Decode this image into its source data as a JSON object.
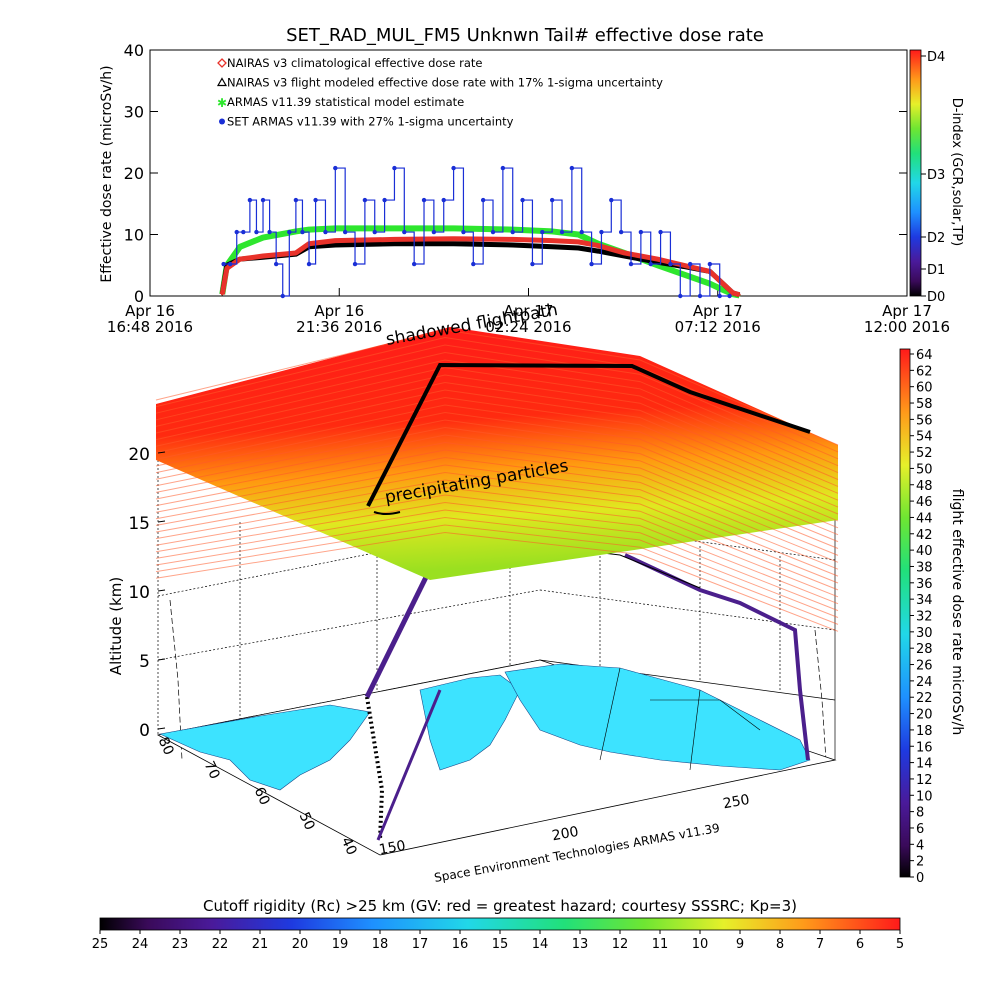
{
  "colors": {
    "climatological": "#e8322a",
    "flight_modeled": "#000000",
    "armas_model": "#2ee62e",
    "set_armas": "#1a2fd6",
    "sheet_red": "#ff1a1a",
    "sheet_green": "#a8e000",
    "land_cyan": "#3de3ff",
    "flight_path": "#4b1f8c"
  },
  "chart_data": [
    {
      "type": "line",
      "title": "SET_RAD_MUL_FM5 Unknwn Tail#  effective dose rate",
      "ylabel": "Effective dose rate (microSv/h)",
      "ylim": [
        0,
        40
      ],
      "yticks": [
        "0",
        "10",
        "20",
        "30",
        "40"
      ],
      "xlim": [
        "2016-04-16T16:48",
        "2016-04-17T12:00"
      ],
      "xticks": [
        {
          "line1": "Apr 16",
          "line2": "16:48 2016"
        },
        {
          "line1": "Apr 16",
          "line2": "21:36 2016"
        },
        {
          "line1": "Apr 17",
          "line2": "02:24 2016"
        },
        {
          "line1": "Apr 17",
          "line2": "07:12 2016"
        },
        {
          "line1": "Apr 17",
          "line2": "12:00 2016"
        }
      ],
      "legend_position": "top-left",
      "series": [
        {
          "name": "NAIRAS v3 climatological effective dose rate",
          "marker": "diamond",
          "x": [
            "2016-04-16T18:38",
            "2016-04-16T18:45",
            "2016-04-16T19:05",
            "2016-04-16T19:40",
            "2016-04-16T20:30",
            "2016-04-16T20:50",
            "2016-04-16T21:30",
            "2016-04-16T23:00",
            "2016-04-17T00:30",
            "2016-04-17T02:00",
            "2016-04-17T03:00",
            "2016-04-17T03:40",
            "2016-04-17T04:10",
            "2016-04-17T04:50",
            "2016-04-17T05:40",
            "2016-04-17T06:20",
            "2016-04-17T07:00",
            "2016-04-17T07:20",
            "2016-04-17T07:35",
            "2016-04-17T07:45"
          ],
          "y": [
            0.3,
            4.5,
            6.0,
            6.5,
            7.0,
            8.5,
            9.0,
            9.2,
            9.3,
            9.2,
            9.0,
            8.8,
            8.2,
            7.0,
            6.0,
            5.0,
            4.0,
            2.0,
            0.5,
            0.2
          ]
        },
        {
          "name": "NAIRAS v3 flight modeled effective dose rate with 17% 1-sigma uncertainty",
          "marker": "triangle",
          "x": [
            "2016-04-16T18:38",
            "2016-04-16T18:45",
            "2016-04-16T19:05",
            "2016-04-16T19:40",
            "2016-04-16T20:30",
            "2016-04-16T20:50",
            "2016-04-16T21:30",
            "2016-04-16T23:00",
            "2016-04-17T00:30",
            "2016-04-17T02:00",
            "2016-04-17T03:00",
            "2016-04-17T03:40",
            "2016-04-17T04:10",
            "2016-04-17T04:50",
            "2016-04-17T05:40",
            "2016-04-17T06:20",
            "2016-04-17T07:00",
            "2016-04-17T07:20",
            "2016-04-17T07:35",
            "2016-04-17T07:45"
          ],
          "y": [
            0.3,
            5.0,
            6.0,
            6.3,
            6.8,
            8.0,
            8.3,
            8.5,
            8.5,
            8.3,
            8.0,
            7.8,
            7.3,
            6.5,
            5.5,
            4.8,
            4.0,
            2.0,
            0.5,
            0.2
          ]
        },
        {
          "name": "ARMAS v11.39 statistical model estimate",
          "marker": "asterisk",
          "x": [
            "2016-04-16T18:38",
            "2016-04-16T18:45",
            "2016-04-16T19:05",
            "2016-04-16T19:40",
            "2016-04-16T20:30",
            "2016-04-16T20:50",
            "2016-04-16T21:30",
            "2016-04-16T23:00",
            "2016-04-17T00:30",
            "2016-04-17T02:00",
            "2016-04-17T03:00",
            "2016-04-17T03:40",
            "2016-04-17T04:10",
            "2016-04-17T04:50",
            "2016-04-17T05:40",
            "2016-04-17T06:20",
            "2016-04-17T07:00",
            "2016-04-17T07:20",
            "2016-04-17T07:35",
            "2016-04-17T07:45"
          ],
          "y": [
            0.3,
            5.0,
            8.0,
            9.5,
            10.5,
            10.8,
            11.0,
            11.0,
            11.0,
            10.8,
            10.5,
            10.0,
            8.5,
            7.0,
            5.0,
            3.5,
            2.0,
            1.0,
            0.3,
            0.1
          ]
        },
        {
          "name": "SET ARMAS v11.39 with 27% 1-sigma uncertainty",
          "marker": "dot",
          "x": [
            "2016-04-16T18:40",
            "2016-04-16T18:50",
            "2016-04-16T19:00",
            "2016-04-16T19:10",
            "2016-04-16T19:20",
            "2016-04-16T19:30",
            "2016-04-16T19:40",
            "2016-04-16T19:50",
            "2016-04-16T20:00",
            "2016-04-16T20:10",
            "2016-04-16T20:20",
            "2016-04-16T20:30",
            "2016-04-16T20:40",
            "2016-04-16T20:50",
            "2016-04-16T21:00",
            "2016-04-16T21:15",
            "2016-04-16T21:30",
            "2016-04-16T21:45",
            "2016-04-16T22:00",
            "2016-04-16T22:15",
            "2016-04-16T22:30",
            "2016-04-16T22:45",
            "2016-04-16T23:00",
            "2016-04-16T23:15",
            "2016-04-16T23:30",
            "2016-04-16T23:45",
            "2016-04-17T00:00",
            "2016-04-17T00:15",
            "2016-04-17T00:30",
            "2016-04-17T00:45",
            "2016-04-17T01:00",
            "2016-04-17T01:15",
            "2016-04-17T01:30",
            "2016-04-17T01:45",
            "2016-04-17T02:00",
            "2016-04-17T02:15",
            "2016-04-17T02:30",
            "2016-04-17T02:45",
            "2016-04-17T03:00",
            "2016-04-17T03:15",
            "2016-04-17T03:30",
            "2016-04-17T03:45",
            "2016-04-17T04:00",
            "2016-04-17T04:15",
            "2016-04-17T04:30",
            "2016-04-17T04:45",
            "2016-04-17T05:00",
            "2016-04-17T05:15",
            "2016-04-17T05:30",
            "2016-04-17T05:45",
            "2016-04-17T06:00",
            "2016-04-17T06:15",
            "2016-04-17T06:30",
            "2016-04-17T06:45",
            "2016-04-17T07:00",
            "2016-04-17T07:15",
            "2016-04-17T07:30"
          ],
          "y": [
            5.2,
            5.2,
            10.4,
            10.4,
            15.6,
            10.4,
            15.6,
            10.4,
            5.2,
            0,
            10.4,
            15.6,
            10.4,
            5.2,
            15.6,
            10.4,
            20.8,
            10.4,
            5.2,
            15.6,
            10.4,
            15.6,
            20.8,
            10.4,
            5.2,
            15.6,
            10.4,
            15.6,
            20.8,
            10.4,
            5.2,
            15.6,
            10.4,
            20.8,
            10.4,
            15.6,
            5.2,
            10.4,
            15.6,
            10.4,
            20.8,
            10.4,
            5.2,
            10.4,
            15.6,
            10.4,
            5.2,
            10.4,
            5.2,
            10.4,
            5.2,
            0,
            5.2,
            0,
            5.2,
            0,
            0
          ]
        }
      ],
      "dindex_colorbar": {
        "ylabel": "D-index (GCR,solar,TP)",
        "ticks": [
          "D0",
          "D1",
          "D2",
          "D3",
          "D4"
        ]
      }
    },
    {
      "type": "heatmap",
      "zlabel": "Altitude (km)",
      "zticks": [
        "0",
        "5",
        "10",
        "15",
        "20"
      ],
      "longitude_ticks": [
        "150",
        "200",
        "250"
      ],
      "latitude_ticks": [
        "80",
        "70",
        "60",
        "50",
        "40"
      ],
      "annotations": [
        "shadowed flightpath",
        "precipitating particles"
      ],
      "credit": "Space Environment Technologies ARMAS v11.39",
      "right_colorbar": {
        "ylabel": "flight effective dose rate microSv/h",
        "range": [
          0,
          64
        ],
        "ticks": [
          "0",
          "2",
          "4",
          "6",
          "8",
          "10",
          "12",
          "14",
          "16",
          "18",
          "20",
          "22",
          "24",
          "26",
          "28",
          "30",
          "32",
          "34",
          "36",
          "38",
          "40",
          "42",
          "44",
          "46",
          "48",
          "50",
          "52",
          "54",
          "56",
          "58",
          "60",
          "62",
          "64"
        ]
      },
      "bottom_colorbar": {
        "title": "Cutoff rigidity (Rc) >25 km (GV: red = greatest hazard; courtesy SSSRC; Kp=3)",
        "range": [
          25,
          5
        ],
        "ticks": [
          "25",
          "24",
          "23",
          "22",
          "21",
          "20",
          "19",
          "18",
          "17",
          "16",
          "15",
          "14",
          "13",
          "12",
          "11",
          "10",
          "9",
          "8",
          "7",
          "6",
          "5"
        ]
      }
    }
  ]
}
